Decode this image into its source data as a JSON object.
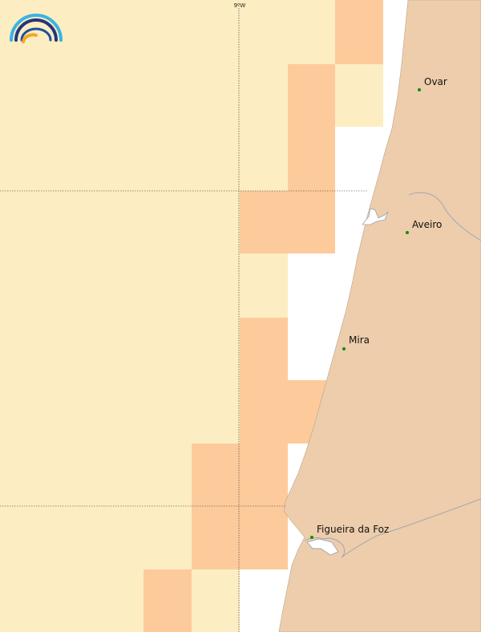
{
  "map": {
    "colors": {
      "sea_low": "#fdedc2",
      "sea_high": "#fdcb9b",
      "land": "#edcdab",
      "background": "#ffffff",
      "coastline": "#9aa3b3",
      "city_dot": "#138a13"
    },
    "longitude_labels": [
      "9ºW"
    ],
    "cities": [
      {
        "name": "Ovar"
      },
      {
        "name": "Aveiro"
      },
      {
        "name": "Mira"
      },
      {
        "name": "Figueira da Foz"
      }
    ],
    "logo": {
      "icon": "rainbow-logo-icon"
    }
  }
}
